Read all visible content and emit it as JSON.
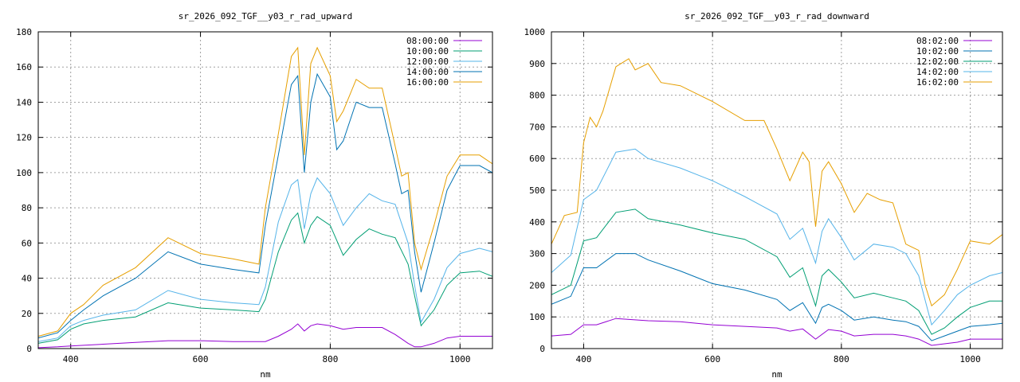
{
  "chart_data": [
    {
      "type": "line",
      "title": "sr_2026_092_TGF__y03_r_rad_upward",
      "xlabel": "nm",
      "ylabel": "",
      "xlim": [
        350,
        1050
      ],
      "ylim": [
        0,
        180
      ],
      "xticks": [
        400,
        600,
        800,
        1000
      ],
      "yticks": [
        0,
        20,
        40,
        60,
        80,
        100,
        120,
        140,
        160,
        180
      ],
      "grid": true,
      "legend_position": "top-right",
      "series": [
        {
          "name": "08:00:00",
          "color": "#9400d3",
          "x": [
            350,
            380,
            400,
            450,
            500,
            550,
            600,
            650,
            700,
            720,
            740,
            750,
            760,
            770,
            780,
            800,
            820,
            840,
            860,
            880,
            900,
            920,
            930,
            940,
            960,
            980,
            1000,
            1030,
            1050
          ],
          "y": [
            0.5,
            1,
            1.5,
            2.5,
            3.5,
            4.5,
            4.5,
            4,
            4,
            7,
            11,
            14,
            10,
            13,
            14,
            13,
            11,
            12,
            12,
            12,
            8,
            3,
            1,
            1,
            3,
            6,
            7,
            7,
            7
          ]
        },
        {
          "name": "10:00:00",
          "color": "#009e73",
          "x": [
            350,
            380,
            400,
            420,
            450,
            500,
            550,
            600,
            650,
            690,
            700,
            720,
            740,
            750,
            760,
            770,
            780,
            800,
            820,
            840,
            860,
            880,
            900,
            920,
            930,
            940,
            960,
            980,
            1000,
            1030,
            1050
          ],
          "y": [
            3,
            5,
            11,
            14,
            16,
            18,
            26,
            23,
            22,
            21,
            28,
            55,
            73,
            77,
            60,
            70,
            75,
            70,
            53,
            62,
            68,
            65,
            63,
            48,
            30,
            13,
            22,
            36,
            43,
            44,
            41
          ]
        },
        {
          "name": "12:00:00",
          "color": "#56b4e9",
          "x": [
            350,
            380,
            400,
            420,
            450,
            500,
            550,
            600,
            650,
            690,
            700,
            720,
            740,
            750,
            760,
            770,
            780,
            800,
            820,
            840,
            860,
            880,
            900,
            920,
            930,
            940,
            960,
            980,
            1000,
            1030,
            1050
          ],
          "y": [
            4,
            6,
            13,
            16,
            19,
            22,
            33,
            28,
            26,
            25,
            35,
            72,
            93,
            96,
            68,
            88,
            97,
            88,
            70,
            80,
            88,
            84,
            82,
            60,
            36,
            15,
            28,
            46,
            54,
            57,
            55
          ]
        },
        {
          "name": "14:00:00",
          "color": "#0072b2",
          "x": [
            350,
            380,
            400,
            420,
            450,
            500,
            550,
            600,
            650,
            690,
            700,
            720,
            740,
            750,
            760,
            770,
            780,
            800,
            810,
            820,
            840,
            860,
            880,
            900,
            910,
            920,
            930,
            940,
            960,
            980,
            1000,
            1030,
            1050
          ],
          "y": [
            6,
            9,
            16,
            22,
            30,
            40,
            55,
            48,
            45,
            43,
            70,
            110,
            150,
            155,
            100,
            140,
            156,
            143,
            113,
            118,
            140,
            137,
            137,
            105,
            88,
            90,
            55,
            32,
            60,
            90,
            104,
            104,
            100
          ]
        },
        {
          "name": "16:00:00",
          "color": "#e69f00",
          "x": [
            350,
            380,
            400,
            420,
            450,
            500,
            550,
            600,
            650,
            690,
            700,
            720,
            740,
            750,
            760,
            770,
            780,
            800,
            810,
            820,
            840,
            860,
            880,
            900,
            910,
            920,
            930,
            940,
            960,
            980,
            1000,
            1030,
            1050
          ],
          "y": [
            7,
            10,
            20,
            25,
            36,
            46,
            63,
            54,
            51,
            48,
            80,
            122,
            166,
            171,
            110,
            162,
            171,
            155,
            129,
            135,
            153,
            148,
            148,
            115,
            98,
            100,
            60,
            45,
            70,
            98,
            110,
            110,
            105
          ]
        }
      ]
    },
    {
      "type": "line",
      "title": "sr_2026_092_TGF__y03_r_rad_downward",
      "xlabel": "nm",
      "ylabel": "",
      "xlim": [
        350,
        1050
      ],
      "ylim": [
        0,
        1000
      ],
      "xticks": [
        400,
        600,
        800,
        1000
      ],
      "yticks": [
        0,
        100,
        200,
        300,
        400,
        500,
        600,
        700,
        800,
        900,
        1000
      ],
      "grid": true,
      "legend_position": "top-right",
      "series": [
        {
          "name": "08:02:00",
          "color": "#9400d3",
          "x": [
            350,
            380,
            400,
            420,
            450,
            500,
            550,
            600,
            650,
            700,
            720,
            740,
            760,
            780,
            800,
            820,
            850,
            880,
            900,
            920,
            940,
            960,
            980,
            1000,
            1030,
            1050
          ],
          "y": [
            40,
            45,
            75,
            75,
            95,
            88,
            85,
            75,
            70,
            65,
            55,
            62,
            30,
            60,
            55,
            40,
            45,
            45,
            40,
            30,
            10,
            15,
            20,
            30,
            30,
            30
          ]
        },
        {
          "name": "10:02:00",
          "color": "#0072b2",
          "x": [
            350,
            380,
            400,
            420,
            450,
            480,
            500,
            550,
            600,
            650,
            700,
            720,
            740,
            760,
            770,
            780,
            800,
            820,
            850,
            880,
            900,
            920,
            940,
            960,
            980,
            1000,
            1030,
            1050
          ],
          "y": [
            140,
            165,
            255,
            255,
            300,
            300,
            280,
            245,
            205,
            185,
            155,
            120,
            145,
            80,
            130,
            140,
            120,
            90,
            100,
            90,
            85,
            70,
            25,
            40,
            55,
            70,
            75,
            80
          ]
        },
        {
          "name": "12:02:00",
          "color": "#009e73",
          "x": [
            350,
            380,
            400,
            420,
            450,
            480,
            500,
            550,
            600,
            650,
            700,
            720,
            740,
            760,
            770,
            780,
            800,
            820,
            850,
            880,
            900,
            920,
            940,
            960,
            980,
            1000,
            1030,
            1050
          ],
          "y": [
            170,
            200,
            340,
            350,
            430,
            440,
            410,
            390,
            365,
            345,
            290,
            225,
            255,
            135,
            230,
            250,
            210,
            160,
            175,
            160,
            150,
            120,
            45,
            65,
            100,
            130,
            150,
            150
          ]
        },
        {
          "name": "14:02:00",
          "color": "#56b4e9",
          "x": [
            350,
            380,
            400,
            420,
            450,
            480,
            500,
            550,
            600,
            650,
            700,
            720,
            740,
            760,
            770,
            780,
            800,
            820,
            850,
            880,
            900,
            920,
            940,
            960,
            980,
            1000,
            1030,
            1050
          ],
          "y": [
            240,
            295,
            470,
            500,
            620,
            630,
            600,
            570,
            530,
            480,
            425,
            345,
            380,
            270,
            370,
            410,
            350,
            280,
            330,
            320,
            300,
            230,
            75,
            120,
            170,
            200,
            230,
            240
          ]
        },
        {
          "name": "16:02:00",
          "color": "#e69f00",
          "x": [
            350,
            370,
            390,
            400,
            410,
            420,
            430,
            450,
            470,
            480,
            500,
            520,
            550,
            600,
            650,
            680,
            700,
            720,
            740,
            750,
            760,
            770,
            780,
            800,
            820,
            840,
            860,
            880,
            900,
            920,
            930,
            940,
            960,
            980,
            1000,
            1030,
            1050
          ],
          "y": [
            330,
            420,
            430,
            650,
            730,
            700,
            750,
            890,
            915,
            880,
            900,
            840,
            830,
            780,
            720,
            720,
            630,
            530,
            620,
            590,
            385,
            560,
            590,
            520,
            430,
            490,
            470,
            460,
            330,
            310,
            200,
            135,
            170,
            250,
            340,
            330,
            360
          ]
        }
      ]
    }
  ]
}
